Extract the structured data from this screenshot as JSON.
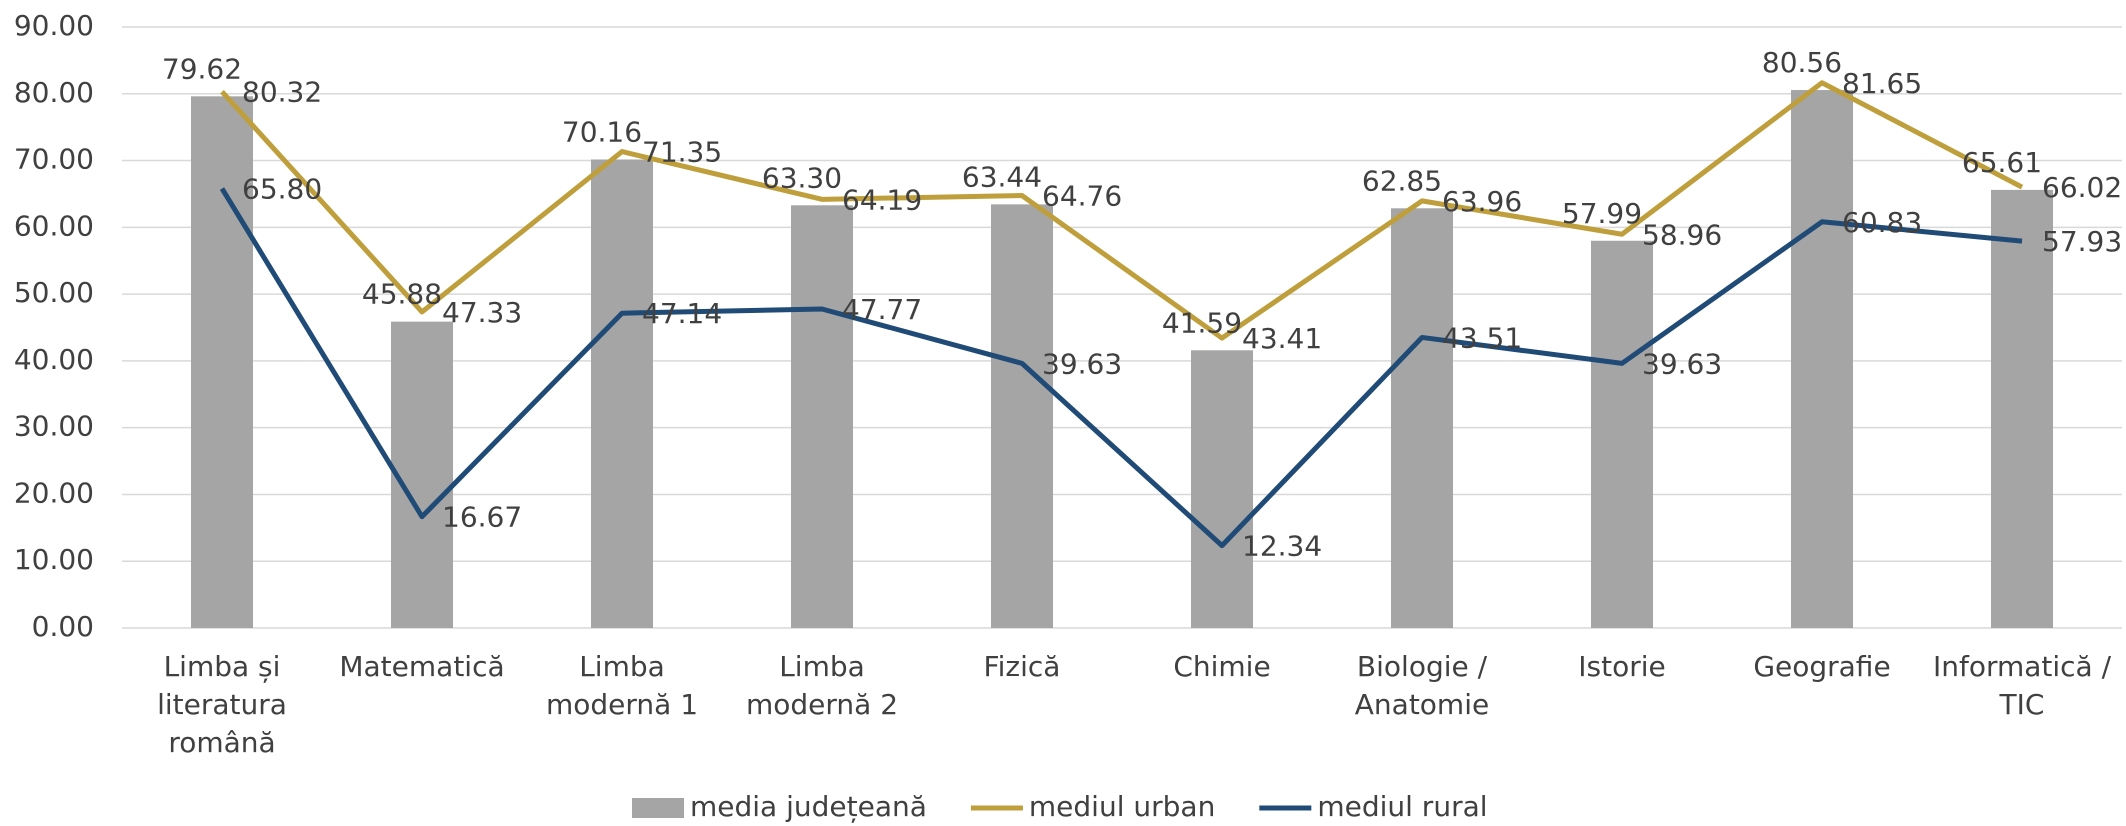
{
  "chart_data": {
    "type": "combo",
    "categories": [
      "Limba și literatura română",
      "Matematică",
      "Limba modernă 1",
      "Limba modernă 2",
      "Fizică",
      "Chimie",
      "Biologie / Anatomie",
      "Istorie",
      "Geografie",
      "Informatică / TIC"
    ],
    "series": [
      {
        "name": "media județeană",
        "type": "bar",
        "color": "#a5a5a5",
        "values": [
          79.62,
          45.88,
          70.16,
          63.3,
          63.44,
          41.59,
          62.85,
          57.99,
          80.56,
          65.61
        ],
        "value_labels": [
          "79.62",
          "45.88",
          "70.16",
          "63.30",
          "63.44",
          "41.59",
          "62.85",
          "57.99",
          "80.56",
          "65.61"
        ]
      },
      {
        "name": "mediul urban",
        "type": "line",
        "color": "#bf9f3c",
        "values": [
          80.32,
          47.33,
          71.35,
          64.19,
          64.76,
          43.41,
          63.96,
          58.96,
          81.65,
          66.02
        ],
        "value_labels": [
          "80.32",
          "47.33",
          "71.35",
          "64.19",
          "64.76",
          "43.41",
          "63.96",
          "58.96",
          "81.65",
          "66.02"
        ]
      },
      {
        "name": "mediul rural",
        "type": "line",
        "color": "#1f4b76",
        "values": [
          65.8,
          16.67,
          47.14,
          47.77,
          39.63,
          12.34,
          43.51,
          39.63,
          60.83,
          57.93
        ],
        "value_labels": [
          "65.80",
          "16.67",
          "47.14",
          "47.77",
          "39.63",
          "12.34",
          "43.51",
          "39.63",
          "60.83",
          "57.93"
        ]
      }
    ],
    "ylim": [
      0,
      90
    ],
    "yticks": [
      {
        "value": 0,
        "label": "0.00"
      },
      {
        "value": 10,
        "label": "10.00"
      },
      {
        "value": 20,
        "label": "20.00"
      },
      {
        "value": 30,
        "label": "30.00"
      },
      {
        "value": 40,
        "label": "40.00"
      },
      {
        "value": 50,
        "label": "50.00"
      },
      {
        "value": 60,
        "label": "60.00"
      },
      {
        "value": 70,
        "label": "70.00"
      },
      {
        "value": 80,
        "label": "80.00"
      },
      {
        "value": 90,
        "label": "90.00"
      }
    ],
    "grid": true,
    "legend": "bottom"
  }
}
